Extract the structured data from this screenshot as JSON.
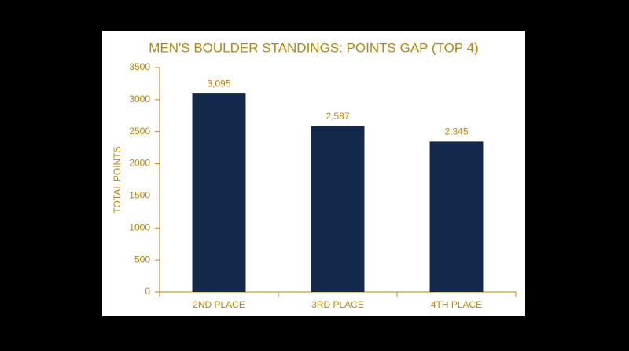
{
  "chart_data": {
    "type": "bar",
    "title": "MEN'S BOULDER STANDINGS: POINTS GAP (TOP 4)",
    "y_label": "TOTAL POINTS",
    "categories": [
      "2ND PLACE",
      "3RD PLACE",
      "4TH PLACE"
    ],
    "values": [
      3095,
      2587,
      2345
    ],
    "value_labels": [
      "3,095",
      "2,587",
      "2,345"
    ],
    "color": "#13294b",
    "ylim": [
      0,
      3500
    ],
    "yticks": [
      0,
      500,
      1000,
      1500,
      2000,
      2500,
      3000,
      3500
    ],
    "grid": false
  }
}
